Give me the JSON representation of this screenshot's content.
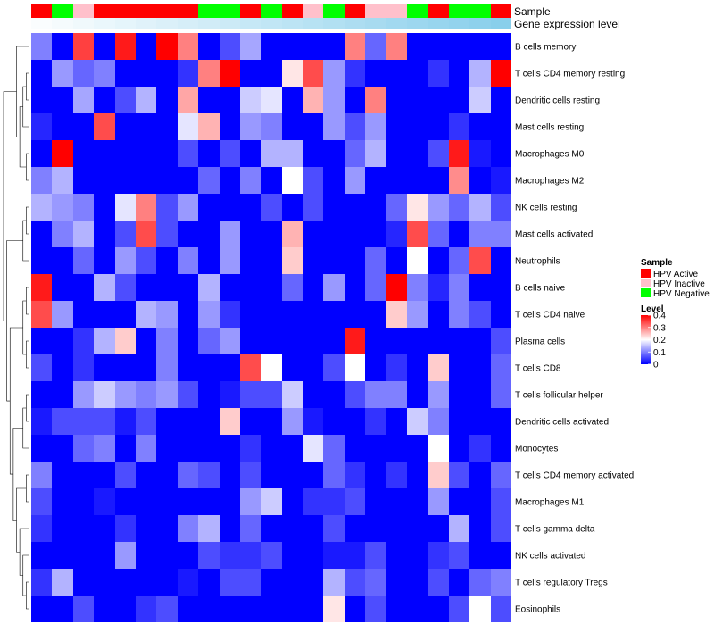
{
  "chart_data": {
    "type": "heatmap",
    "title": "",
    "annotation_labels": {
      "sample": "Sample",
      "gene_expression": "Gene expression level"
    },
    "rows": [
      "B cells memory",
      "T cells CD4 memory resting",
      "Dendritic cells resting",
      "Mast cells resting",
      "Macrophages M0",
      "Macrophages M2",
      "NK cells resting",
      "Mast cells activated",
      "Neutrophils",
      "B cells naive",
      "T cells CD4 naive",
      "Plasma cells",
      "T cells CD8",
      "T cells follicular helper",
      "Dendritic cells activated",
      "Monocytes",
      "T cells CD4 memory activated",
      "Macrophages M1",
      "T cells gamma delta",
      "NK cells activated",
      "T cells regulatory  Tregs",
      "Eosinophils"
    ],
    "sample_groups": [
      "HPV Active",
      "HPV Negative",
      "HPV Inactive",
      "HPV Active",
      "HPV Active",
      "HPV Active",
      "HPV Active",
      "HPV Active",
      "HPV Negative",
      "HPV Negative",
      "HPV Active",
      "HPV Negative",
      "HPV Active",
      "HPV Inactive",
      "HPV Negative",
      "HPV Active",
      "HPV Inactive",
      "HPV Inactive",
      "HPV Negative",
      "HPV Active",
      "HPV Negative",
      "HPV Negative",
      "HPV Active"
    ],
    "expression_levels": [
      0.03,
      0.06,
      0.09,
      0.12,
      0.15,
      0.18,
      0.21,
      0.24,
      0.27,
      0.3,
      0.33,
      0.36,
      0.39,
      0.42,
      0.45,
      0.48,
      0.51,
      0.54,
      0.57,
      0.6,
      0.63,
      0.66,
      0.69
    ],
    "values": [
      [
        0.1,
        0.0,
        0.35,
        0.0,
        0.38,
        0.0,
        0.4,
        0.3,
        0.0,
        0.06,
        0.13,
        0.0,
        0.0,
        0.0,
        0.0,
        0.3,
        0.08,
        0.3,
        0.0,
        0.0,
        0.0,
        0.0,
        0.0
      ],
      [
        0.0,
        0.12,
        0.08,
        0.1,
        0.0,
        0.0,
        0.0,
        0.04,
        0.3,
        0.4,
        0.0,
        0.0,
        0.22,
        0.34,
        0.12,
        0.04,
        0.0,
        0.0,
        0.0,
        0.04,
        0.0,
        0.14,
        0.4
      ],
      [
        0.0,
        0.0,
        0.13,
        0.0,
        0.06,
        0.14,
        0.0,
        0.27,
        0.0,
        0.0,
        0.16,
        0.18,
        0.0,
        0.26,
        0.12,
        0.0,
        0.3,
        0.0,
        0.0,
        0.0,
        0.0,
        0.16,
        0.0
      ],
      [
        0.03,
        0.0,
        0.0,
        0.34,
        0.0,
        0.0,
        0.0,
        0.18,
        0.26,
        0.0,
        0.12,
        0.1,
        0.0,
        0.0,
        0.12,
        0.06,
        0.12,
        0.0,
        0.0,
        0.0,
        0.04,
        0.0,
        0.0
      ],
      [
        0.0,
        0.4,
        0.0,
        0.0,
        0.0,
        0.0,
        0.0,
        0.06,
        0.0,
        0.06,
        0.0,
        0.14,
        0.14,
        0.0,
        0.0,
        0.08,
        0.14,
        0.0,
        0.0,
        0.06,
        0.38,
        0.02,
        0.0
      ],
      [
        0.1,
        0.14,
        0.0,
        0.0,
        0.0,
        0.0,
        0.0,
        0.0,
        0.08,
        0.0,
        0.1,
        0.0,
        0.2,
        0.06,
        0.0,
        0.12,
        0.0,
        0.0,
        0.0,
        0.0,
        0.29,
        0.0,
        0.02
      ],
      [
        0.14,
        0.12,
        0.1,
        0.0,
        0.18,
        0.3,
        0.06,
        0.12,
        0.0,
        0.0,
        0.0,
        0.06,
        0.0,
        0.06,
        0.0,
        0.0,
        0.0,
        0.08,
        0.22,
        0.12,
        0.08,
        0.14,
        0.06
      ],
      [
        0.0,
        0.1,
        0.14,
        0.0,
        0.06,
        0.34,
        0.06,
        0.0,
        0.0,
        0.12,
        0.0,
        0.0,
        0.26,
        0.0,
        0.0,
        0.0,
        0.0,
        0.03,
        0.34,
        0.08,
        0.0,
        0.1,
        0.1
      ],
      [
        0.0,
        0.0,
        0.08,
        0.0,
        0.12,
        0.06,
        0.0,
        0.1,
        0.0,
        0.12,
        0.0,
        0.0,
        0.24,
        0.0,
        0.0,
        0.0,
        0.08,
        0.0,
        0.2,
        0.0,
        0.08,
        0.34,
        0.0
      ],
      [
        0.38,
        0.0,
        0.0,
        0.14,
        0.06,
        0.0,
        0.0,
        0.0,
        0.14,
        0.0,
        0.0,
        0.0,
        0.08,
        0.0,
        0.12,
        0.0,
        0.08,
        0.4,
        0.1,
        0.03,
        0.1,
        0.0,
        0.0
      ],
      [
        0.34,
        0.12,
        0.0,
        0.0,
        0.0,
        0.14,
        0.12,
        0.0,
        0.12,
        0.04,
        0.0,
        0.0,
        0.0,
        0.0,
        0.0,
        0.0,
        0.0,
        0.24,
        0.12,
        0.0,
        0.1,
        0.06,
        0.0
      ],
      [
        0.0,
        0.0,
        0.04,
        0.14,
        0.24,
        0.0,
        0.1,
        0.0,
        0.08,
        0.12,
        0.0,
        0.0,
        0.0,
        0.0,
        0.0,
        0.38,
        0.0,
        0.0,
        0.0,
        0.0,
        0.0,
        0.0,
        0.06
      ],
      [
        0.06,
        0.0,
        0.04,
        0.0,
        0.0,
        0.0,
        0.1,
        0.0,
        0.0,
        0.0,
        0.34,
        0.2,
        0.0,
        0.0,
        0.06,
        0.2,
        0.0,
        0.04,
        0.0,
        0.24,
        0.0,
        0.0,
        0.08
      ],
      [
        0.0,
        0.0,
        0.12,
        0.16,
        0.12,
        0.1,
        0.12,
        0.06,
        0.0,
        0.02,
        0.06,
        0.06,
        0.16,
        0.0,
        0.0,
        0.06,
        0.1,
        0.1,
        0.0,
        0.12,
        0.0,
        0.0,
        0.08
      ],
      [
        0.02,
        0.06,
        0.06,
        0.06,
        0.02,
        0.06,
        0.0,
        0.0,
        0.0,
        0.24,
        0.0,
        0.0,
        0.12,
        0.02,
        0.0,
        0.0,
        0.04,
        0.0,
        0.16,
        0.1,
        0.0,
        0.0,
        0.0
      ],
      [
        0.0,
        0.0,
        0.08,
        0.1,
        0.0,
        0.1,
        0.0,
        0.0,
        0.0,
        0.0,
        0.04,
        0.0,
        0.0,
        0.18,
        0.08,
        0.0,
        0.0,
        0.0,
        0.0,
        0.2,
        0.0,
        0.04,
        0.0
      ],
      [
        0.1,
        0.0,
        0.0,
        0.0,
        0.06,
        0.0,
        0.0,
        0.08,
        0.06,
        0.0,
        0.06,
        0.0,
        0.0,
        0.0,
        0.08,
        0.04,
        0.0,
        0.04,
        0.0,
        0.24,
        0.06,
        0.0,
        0.08
      ],
      [
        0.06,
        0.0,
        0.0,
        0.02,
        0.0,
        0.0,
        0.0,
        0.0,
        0.0,
        0.0,
        0.12,
        0.16,
        0.0,
        0.04,
        0.04,
        0.06,
        0.0,
        0.0,
        0.0,
        0.12,
        0.0,
        0.0,
        0.06
      ],
      [
        0.04,
        0.0,
        0.0,
        0.0,
        0.04,
        0.0,
        0.0,
        0.1,
        0.14,
        0.0,
        0.08,
        0.0,
        0.0,
        0.0,
        0.06,
        0.0,
        0.0,
        0.0,
        0.0,
        0.0,
        0.14,
        0.0,
        0.06
      ],
      [
        0.0,
        0.0,
        0.0,
        0.0,
        0.12,
        0.0,
        0.0,
        0.0,
        0.06,
        0.04,
        0.04,
        0.06,
        0.0,
        0.0,
        0.02,
        0.02,
        0.06,
        0.0,
        0.0,
        0.04,
        0.06,
        0.0,
        0.0
      ],
      [
        0.04,
        0.14,
        0.0,
        0.0,
        0.0,
        0.0,
        0.0,
        0.02,
        0.0,
        0.06,
        0.06,
        0.0,
        0.0,
        0.0,
        0.14,
        0.06,
        0.08,
        0.0,
        0.0,
        0.06,
        0.0,
        0.08,
        0.1
      ],
      [
        0.0,
        0.0,
        0.06,
        0.0,
        0.0,
        0.04,
        0.06,
        0.0,
        0.0,
        0.0,
        0.0,
        0.0,
        0.0,
        0.0,
        0.22,
        0.0,
        0.06,
        0.0,
        0.0,
        0.0,
        0.06,
        0.2,
        0.06
      ]
    ],
    "legend": {
      "sample_title": "Sample",
      "sample_entries": [
        {
          "label": "HPV Active",
          "color": "#ff0000"
        },
        {
          "label": "HPV Inactive",
          "color": "#ffc0cb"
        },
        {
          "label": "HPV Negative",
          "color": "#00ff00"
        }
      ],
      "level_title": "Level",
      "level_ticks": [
        0,
        0.1,
        0.2,
        0.3,
        0.4
      ],
      "level_tick_labels": [
        "0",
        "0.1",
        "0.2",
        "0.3",
        "0.4"
      ],
      "placement": "right"
    },
    "color_scale": {
      "low": "#0000ff",
      "mid": "#ffffff",
      "high": "#ff0000",
      "min": 0,
      "mid_value": 0.2,
      "max": 0.4
    },
    "expression_scale": {
      "low": "#ffffff",
      "high": "#87ceeb",
      "min": 0,
      "max": 0.7
    },
    "row_dendrogram": true
  }
}
